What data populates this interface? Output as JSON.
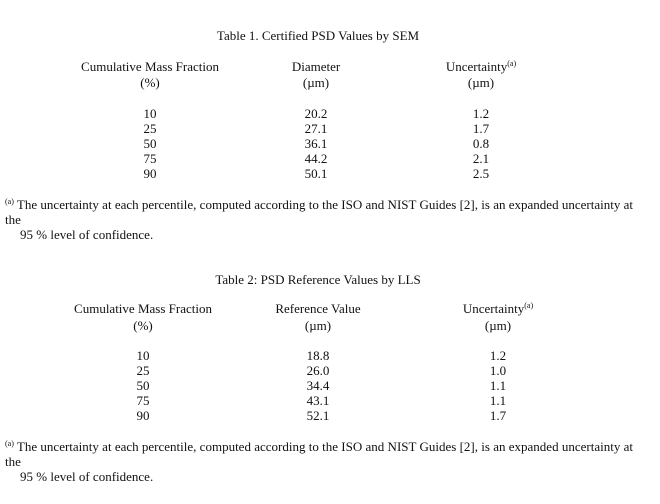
{
  "tables": [
    {
      "title": "Table 1.  Certified PSD Values by SEM",
      "headers": [
        {
          "line1": "Cumulative Mass Fraction",
          "line2": "(%)"
        },
        {
          "line1": "Diameter",
          "line2": "(µm)"
        },
        {
          "line1": "Uncertainty",
          "sup": "(a)",
          "line2": "(µm)"
        }
      ],
      "rows": [
        [
          "10",
          "20.2",
          "1.2"
        ],
        [
          "25",
          "27.1",
          "1.7"
        ],
        [
          "50",
          "36.1",
          "0.8"
        ],
        [
          "75",
          "44.2",
          "2.1"
        ],
        [
          "90",
          "50.1",
          "2.5"
        ]
      ],
      "footnote": {
        "mark": "(a)",
        "line1": " The uncertainty at each percentile, computed according to the ISO and NIST Guides [2], is an expanded uncertainty at the",
        "line2": "95 % level of confidence."
      }
    },
    {
      "title": "Table 2:  PSD Reference Values by LLS",
      "headers": [
        {
          "line1": "Cumulative Mass Fraction",
          "line2": "(%)"
        },
        {
          "line1": "Reference Value",
          "line2": "(µm)"
        },
        {
          "line1": "Uncertainty",
          "sup": "(a)",
          "line2": "(µm)"
        }
      ],
      "rows": [
        [
          "10",
          "18.8",
          "1.2"
        ],
        [
          "25",
          "26.0",
          "1.0"
        ],
        [
          "50",
          "34.4",
          "1.1"
        ],
        [
          "75",
          "43.1",
          "1.1"
        ],
        [
          "90",
          "52.1",
          "1.7"
        ]
      ],
      "footnote": {
        "mark": "(a)",
        "line1": " The uncertainty at each percentile, computed according to the ISO and NIST Guides [2], is an expanded uncertainty at the",
        "line2": "95 % level of confidence."
      }
    }
  ]
}
